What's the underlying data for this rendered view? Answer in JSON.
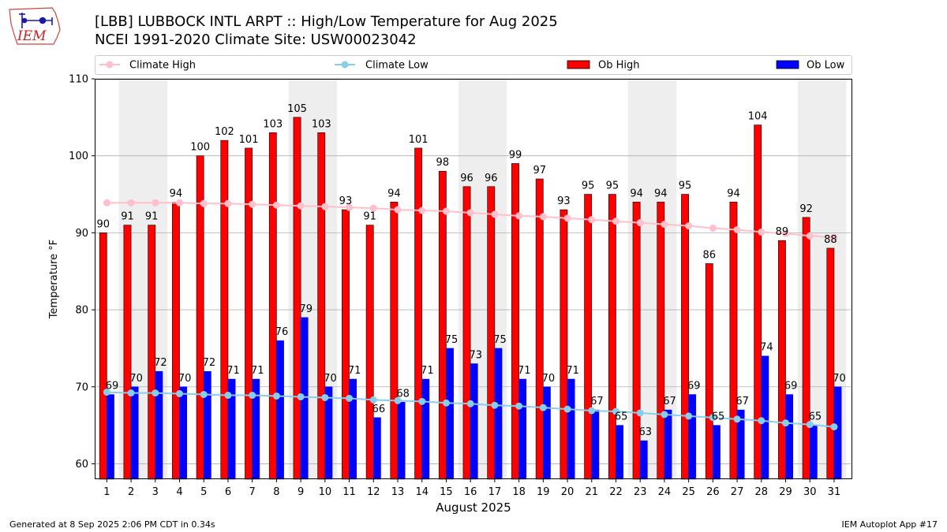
{
  "header": {
    "title_line1": "[LBB] LUBBOCK INTL ARPT :: High/Low Temperature for Aug 2025",
    "title_line2": "NCEI 1991-2020 Climate Site: USW00023042"
  },
  "logo": {
    "text": "IEM"
  },
  "footer": {
    "left": "Generated at 8 Sep 2025 2:06 PM CDT in 0.34s",
    "right": "IEM Autoplot App #17"
  },
  "colors": {
    "ob_high": "#ff0000",
    "ob_low": "#0000ff",
    "climate_high": "#ffc0cb",
    "climate_low": "#87ceeb",
    "weekend_band": "#eeeeee",
    "grid": "#b0b0b0"
  },
  "chart_data": {
    "type": "bar",
    "xlabel": "August 2025",
    "ylabel": "Temperature °F",
    "ylim": [
      58,
      110
    ],
    "yticks": [
      60,
      70,
      80,
      90,
      100,
      110
    ],
    "grid": "horizontal",
    "legend_position": "top",
    "categories": [
      "1",
      "2",
      "3",
      "4",
      "5",
      "6",
      "7",
      "8",
      "9",
      "10",
      "11",
      "12",
      "13",
      "14",
      "15",
      "16",
      "17",
      "18",
      "19",
      "20",
      "21",
      "22",
      "23",
      "24",
      "25",
      "26",
      "27",
      "28",
      "29",
      "30",
      "31"
    ],
    "shaded_days": [
      "2",
      "3",
      "9",
      "10",
      "16",
      "17",
      "23",
      "24",
      "30",
      "31"
    ],
    "series": [
      {
        "name": "Climate High",
        "kind": "line",
        "color": "#ffc0cb",
        "values": [
          93.9,
          93.9,
          93.9,
          93.9,
          93.8,
          93.8,
          93.7,
          93.6,
          93.5,
          93.4,
          93.3,
          93.2,
          93.0,
          92.9,
          92.8,
          92.6,
          92.4,
          92.2,
          92.1,
          91.9,
          91.7,
          91.5,
          91.3,
          91.1,
          90.9,
          90.6,
          90.4,
          90.1,
          89.9,
          89.6,
          89.4
        ]
      },
      {
        "name": "Climate Low",
        "kind": "line",
        "color": "#87ceeb",
        "values": [
          69.3,
          69.2,
          69.2,
          69.1,
          69.0,
          68.9,
          68.9,
          68.8,
          68.7,
          68.6,
          68.5,
          68.3,
          68.2,
          68.1,
          67.9,
          67.8,
          67.6,
          67.5,
          67.3,
          67.1,
          66.9,
          66.8,
          66.6,
          66.4,
          66.2,
          66.0,
          65.8,
          65.6,
          65.3,
          65.1,
          64.8
        ]
      },
      {
        "name": "Ob High",
        "kind": "bar",
        "color": "#ff0000",
        "values": [
          90,
          91,
          91,
          94,
          100,
          102,
          101,
          103,
          105,
          103,
          93,
          91,
          94,
          101,
          98,
          96,
          96,
          99,
          97,
          93,
          95,
          95,
          94,
          94,
          95,
          86,
          94,
          104,
          89,
          92,
          88
        ]
      },
      {
        "name": "Ob Low",
        "kind": "bar",
        "color": "#0000ff",
        "values": [
          69,
          70,
          72,
          70,
          72,
          71,
          71,
          76,
          79,
          70,
          71,
          66,
          68,
          71,
          75,
          73,
          75,
          71,
          70,
          71,
          67,
          65,
          63,
          67,
          69,
          65,
          67,
          74,
          69,
          65,
          70
        ]
      }
    ]
  }
}
